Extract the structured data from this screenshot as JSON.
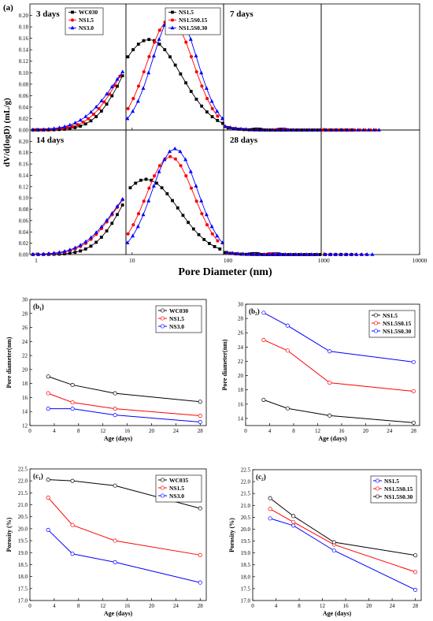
{
  "figure": {
    "panel_a_label": "(a)",
    "top_ylabel": "dV/d(logD) (mL/g)",
    "top_xlabel": "Pore Diameter (nm)"
  },
  "chart_data": [
    {
      "id": "a-3d-wc",
      "type": "line",
      "annotation": "3 days",
      "xscale": "log",
      "xlim": [
        0.6,
        10000
      ],
      "ylim": [
        0,
        0.22
      ],
      "x_ticks": [
        "1",
        "10",
        "100",
        "1000"
      ],
      "y_ticks": [
        "0.00",
        "0.02",
        "0.04",
        "0.06",
        "0.08",
        "0.10",
        "0.12",
        "0.14",
        "0.16",
        "0.18",
        "0.20"
      ],
      "legend_position": "top-right",
      "series": [
        {
          "name": "WC030",
          "color": "#000000",
          "marker": "square",
          "peak_x": 17,
          "peak_y": 0.171,
          "width": 0.45
        },
        {
          "name": "NS1.5",
          "color": "#ff0000",
          "marker": "circle",
          "peak_x": 16,
          "peak_y": 0.158,
          "width": 0.48
        },
        {
          "name": "NS3.0",
          "color": "#0000ff",
          "marker": "triangle",
          "peak_x": 15,
          "peak_y": 0.138,
          "width": 0.52
        }
      ]
    },
    {
      "id": "a-3d-ns",
      "type": "line",
      "xscale": "log",
      "xlim": [
        0.6,
        10000
      ],
      "ylim": [
        0,
        0.22
      ],
      "x_ticks": [
        "10",
        "100",
        "1000"
      ],
      "legend_position": "top-right",
      "series": [
        {
          "name": "NS1.5",
          "color": "#000000",
          "marker": "square",
          "peak_x": 15,
          "peak_y": 0.158,
          "width": 0.5
        },
        {
          "name": "NS1.5S0.15",
          "color": "#ff0000",
          "marker": "circle",
          "peak_x": 25,
          "peak_y": 0.193,
          "width": 0.36
        },
        {
          "name": "NS1.5S0.30",
          "color": "#0000ff",
          "marker": "triangle",
          "peak_x": 28,
          "peak_y": 0.205,
          "width": 0.34
        }
      ]
    },
    {
      "id": "a-7d-wc",
      "type": "line",
      "annotation": "7 days",
      "xscale": "log",
      "xlim": [
        0.6,
        10000
      ],
      "ylim": [
        0,
        0.22
      ],
      "x_ticks": [
        "10",
        "100",
        "1000"
      ],
      "series": [
        {
          "color": "#000000",
          "marker": "square",
          "peak_x": 15,
          "peak_y": 0.168,
          "width": 0.45
        },
        {
          "color": "#ff0000",
          "marker": "circle",
          "peak_x": 14,
          "peak_y": 0.15,
          "width": 0.48
        },
        {
          "color": "#0000ff",
          "marker": "triangle",
          "peak_x": 14,
          "peak_y": 0.127,
          "width": 0.5
        }
      ]
    },
    {
      "id": "a-7d-ns",
      "type": "line",
      "xscale": "log",
      "xlim": [
        0.6,
        10000
      ],
      "ylim": [
        0,
        0.22
      ],
      "x_ticks": [
        "10",
        "100",
        "1000"
      ],
      "series": [
        {
          "color": "#000000",
          "marker": "square",
          "peak_x": 14,
          "peak_y": 0.149,
          "width": 0.5
        },
        {
          "color": "#ff0000",
          "marker": "circle",
          "peak_x": 25,
          "peak_y": 0.19,
          "width": 0.37
        },
        {
          "color": "#0000ff",
          "marker": "triangle",
          "peak_x": 27,
          "peak_y": 0.2,
          "width": 0.35
        }
      ]
    },
    {
      "id": "a-14d-wc",
      "type": "line",
      "annotation": "14 days",
      "xscale": "log",
      "xlim": [
        0.6,
        10000
      ],
      "ylim": [
        0,
        0.22
      ],
      "x_ticks": [
        "1",
        "10",
        "100",
        "1000"
      ],
      "y_ticks": [
        "0.00",
        "0.02",
        "0.04",
        "0.06",
        "0.08",
        "0.10",
        "0.12",
        "0.14",
        "0.16",
        "0.18",
        "0.20"
      ],
      "series": [
        {
          "color": "#000000",
          "marker": "square",
          "peak_x": 17,
          "peak_y": 0.158,
          "width": 0.45
        },
        {
          "color": "#ff0000",
          "marker": "circle",
          "peak_x": 15,
          "peak_y": 0.135,
          "width": 0.5
        },
        {
          "color": "#0000ff",
          "marker": "triangle",
          "peak_x": 15,
          "peak_y": 0.133,
          "width": 0.52
        }
      ]
    },
    {
      "id": "a-14d-ns",
      "type": "line",
      "xscale": "log",
      "xlim": [
        0.6,
        10000
      ],
      "ylim": [
        0,
        0.22
      ],
      "x_ticks": [
        "10",
        "100",
        "1000"
      ],
      "series": [
        {
          "color": "#000000",
          "marker": "square",
          "peak_x": 14,
          "peak_y": 0.133,
          "width": 0.5
        },
        {
          "color": "#ff0000",
          "marker": "circle",
          "peak_x": 25,
          "peak_y": 0.173,
          "width": 0.37
        },
        {
          "color": "#0000ff",
          "marker": "triangle",
          "peak_x": 28,
          "peak_y": 0.187,
          "width": 0.35
        }
      ]
    },
    {
      "id": "a-28d-wc",
      "type": "line",
      "annotation": "28 days",
      "xscale": "log",
      "xlim": [
        0.6,
        10000
      ],
      "ylim": [
        0,
        0.22
      ],
      "x_ticks": [
        "10",
        "100",
        "1000"
      ],
      "series": [
        {
          "color": "#000000",
          "marker": "square",
          "peak_x": 14,
          "peak_y": 0.145,
          "width": 0.45
        },
        {
          "color": "#ff0000",
          "marker": "circle",
          "peak_x": 13,
          "peak_y": 0.118,
          "width": 0.48
        },
        {
          "color": "#0000ff",
          "marker": "triangle",
          "peak_x": 13,
          "peak_y": 0.111,
          "width": 0.5
        }
      ]
    },
    {
      "id": "a-28d-ns",
      "type": "line",
      "xscale": "log",
      "xlim": [
        0.6,
        10000
      ],
      "ylim": [
        0,
        0.22
      ],
      "x_ticks": [
        "10",
        "100",
        "1000",
        "10000"
      ],
      "series": [
        {
          "color": "#000000",
          "marker": "square",
          "peak_x": 14,
          "peak_y": 0.118,
          "width": 0.5
        },
        {
          "color": "#ff0000",
          "marker": "circle",
          "peak_x": 20,
          "peak_y": 0.157,
          "width": 0.38
        },
        {
          "color": "#0000ff",
          "marker": "triangle",
          "peak_x": 23,
          "peak_y": 0.185,
          "width": 0.36
        }
      ]
    },
    {
      "id": "b1",
      "type": "line",
      "panel_label": "(b₁)",
      "xlabel": "Age (days)",
      "ylabel": "Pore diameter(nm)",
      "xlim": [
        0,
        29
      ],
      "ylim": [
        12,
        30
      ],
      "x_ticks": [
        0,
        4,
        8,
        12,
        16,
        20,
        24,
        28
      ],
      "y_ticks": [
        12,
        14,
        16,
        18,
        20,
        22,
        24,
        26,
        28,
        30
      ],
      "legend_position": "top-right",
      "x": [
        3,
        7,
        14,
        28
      ],
      "series": [
        {
          "name": "WC030",
          "color": "#000000",
          "values": [
            19.0,
            17.8,
            16.6,
            15.4
          ]
        },
        {
          "name": "NS1.5",
          "color": "#ff0000",
          "values": [
            16.6,
            15.3,
            14.4,
            13.4
          ]
        },
        {
          "name": "NS3.0",
          "color": "#0000ff",
          "values": [
            14.4,
            14.4,
            13.5,
            12.5
          ]
        }
      ]
    },
    {
      "id": "b2",
      "type": "line",
      "panel_label": "(b₂)",
      "xlabel": "Age (days)",
      "ylabel": "Pore diameter(nm)",
      "xlim": [
        0,
        29
      ],
      "ylim": [
        13,
        30
      ],
      "x_ticks": [
        0,
        4,
        8,
        12,
        16,
        20,
        24,
        28
      ],
      "y_ticks": [
        14,
        16,
        18,
        20,
        22,
        24,
        26,
        28,
        30
      ],
      "legend_position": "top-right",
      "x": [
        3,
        7,
        14,
        28
      ],
      "series": [
        {
          "name": "NS1.5",
          "color": "#000000",
          "values": [
            16.6,
            15.4,
            14.4,
            13.4
          ]
        },
        {
          "name": "NS1.5S0.15",
          "color": "#ff0000",
          "values": [
            25.0,
            23.5,
            19.0,
            17.8
          ]
        },
        {
          "name": "NS1.5S0.30",
          "color": "#0000ff",
          "values": [
            28.8,
            27.0,
            23.4,
            21.9
          ]
        }
      ]
    },
    {
      "id": "c1",
      "type": "line",
      "panel_label": "(c₁)",
      "xlabel": "Age (days)",
      "ylabel": "Porosity (%)",
      "xlim": [
        0,
        29
      ],
      "ylim": [
        17.0,
        22.5
      ],
      "x_ticks": [
        0,
        4,
        8,
        12,
        16,
        20,
        24,
        28
      ],
      "y_ticks": [
        "17.0",
        "17.5",
        "18.0",
        "18.5",
        "19.0",
        "19.5",
        "20.0",
        "20.5",
        "21.0",
        "21.5",
        "22.0",
        "22.5"
      ],
      "legend_position": "top-right",
      "x": [
        3,
        7,
        14,
        28
      ],
      "series": [
        {
          "name": "WC035",
          "color": "#000000",
          "values": [
            22.05,
            22.0,
            21.8,
            20.85
          ]
        },
        {
          "name": "NS1.5",
          "color": "#ff0000",
          "values": [
            21.3,
            20.15,
            19.5,
            18.9
          ]
        },
        {
          "name": "NS3.0",
          "color": "#0000ff",
          "values": [
            19.95,
            18.95,
            18.6,
            17.75
          ]
        }
      ]
    },
    {
      "id": "c2",
      "type": "line",
      "panel_label": "(c₂)",
      "xlabel": "Age (days)",
      "ylabel": "Porosity (%)",
      "xlim": [
        0,
        29
      ],
      "ylim": [
        17.0,
        22.5
      ],
      "x_ticks": [
        0,
        4,
        8,
        12,
        16,
        20,
        24,
        28
      ],
      "y_ticks": [
        "17.0",
        "17.5",
        "18.0",
        "18.5",
        "19.0",
        "19.5",
        "20.0",
        "20.5",
        "21.0",
        "21.5",
        "22.0",
        "22.5"
      ],
      "legend_position": "top-right",
      "x": [
        3,
        7,
        14,
        28
      ],
      "series": [
        {
          "name": "NS1.5",
          "color": "#0000ff",
          "values": [
            20.45,
            20.15,
            19.1,
            17.45
          ]
        },
        {
          "name": "NS1.5S0.15",
          "color": "#ff0000",
          "values": [
            20.85,
            20.3,
            19.35,
            18.2
          ]
        },
        {
          "name": "NS1.5S0.30",
          "color": "#000000",
          "values": [
            21.3,
            20.55,
            19.45,
            18.9
          ]
        }
      ]
    }
  ]
}
